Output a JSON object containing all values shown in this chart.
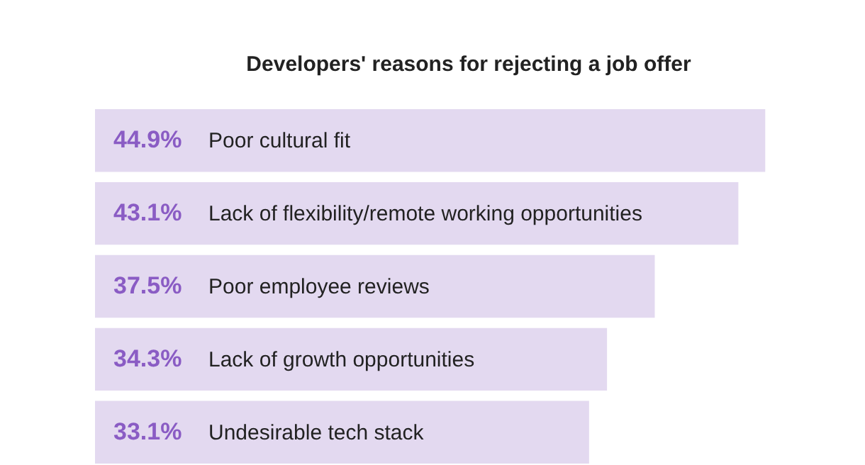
{
  "chart_data": {
    "type": "bar",
    "orientation": "horizontal",
    "title": "Developers' reasons for rejecting a job offer",
    "categories": [
      "Poor cultural fit",
      "Lack of flexibility/remote working opportunities",
      "Poor employee reviews",
      "Lack of growth opportunities",
      "Undesirable tech stack"
    ],
    "values": [
      44.9,
      43.1,
      37.5,
      34.3,
      33.1
    ],
    "value_labels": [
      "44.9%",
      "43.1%",
      "37.5%",
      "34.3%",
      "33.1%"
    ],
    "color": "#e3d9f0"
  }
}
